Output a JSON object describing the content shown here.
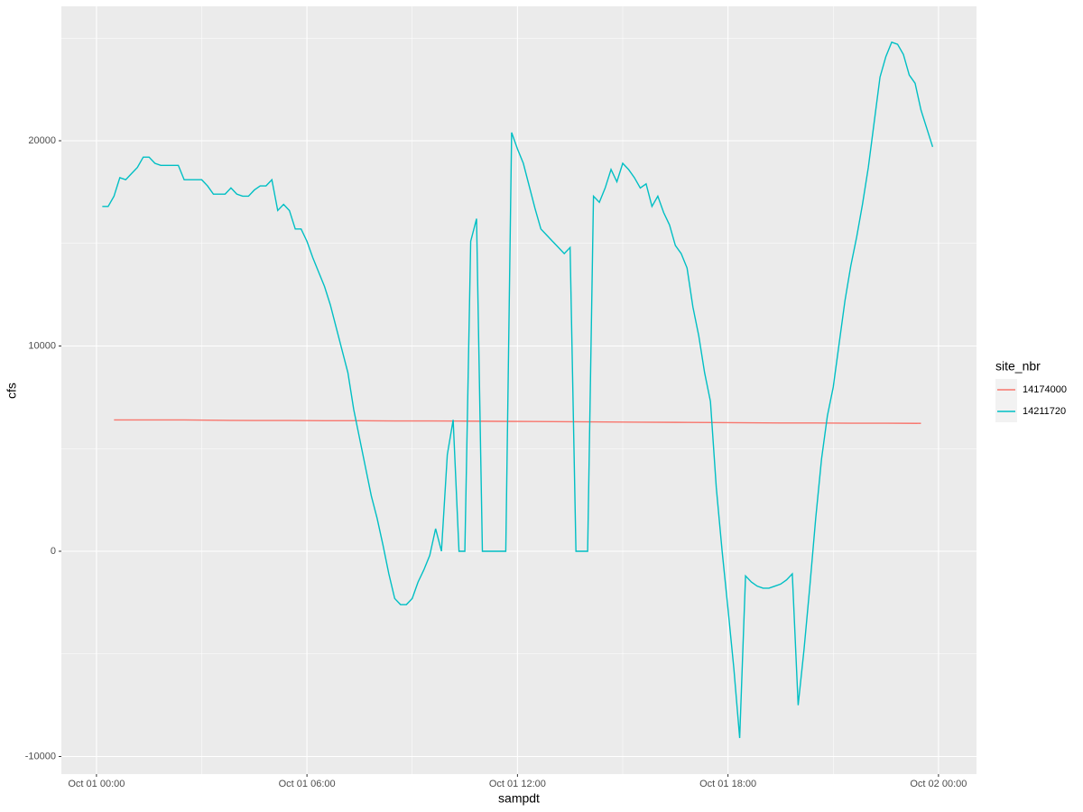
{
  "chart_data": {
    "type": "line",
    "x_label": "sampdt",
    "y_label": "cfs",
    "legend_title": "site_nbr",
    "legend": "right",
    "grid": true,
    "xlim": [
      "Sep 30 23:00",
      "Oct 02 01:05"
    ],
    "xticks": [
      "Oct 01 00:00",
      "Oct 01 06:00",
      "Oct 01 12:00",
      "Oct 01 18:00",
      "Oct 02 00:00"
    ],
    "ylim": [
      -10857,
      26549
    ],
    "yticks": [
      -10000,
      0,
      10000,
      20000
    ],
    "series": [
      {
        "name": "14174000",
        "color": "#F8766D",
        "x": [
          "Oct 01 00:30",
          "Oct 01 01:30",
          "Oct 01 02:30",
          "Oct 01 03:30",
          "Oct 01 04:30",
          "Oct 01 05:30",
          "Oct 01 06:30",
          "Oct 01 07:30",
          "Oct 01 08:30",
          "Oct 01 09:30",
          "Oct 01 10:30",
          "Oct 01 11:30",
          "Oct 01 12:30",
          "Oct 01 13:30",
          "Oct 01 14:30",
          "Oct 01 15:30",
          "Oct 01 16:30",
          "Oct 01 17:30",
          "Oct 01 18:30",
          "Oct 01 19:30",
          "Oct 01 20:30",
          "Oct 01 21:30",
          "Oct 01 22:30",
          "Oct 01 23:30"
        ],
        "values": [
          6400,
          6400,
          6400,
          6380,
          6370,
          6370,
          6360,
          6360,
          6350,
          6350,
          6340,
          6330,
          6320,
          6310,
          6300,
          6290,
          6280,
          6270,
          6260,
          6250,
          6250,
          6240,
          6240,
          6230
        ]
      },
      {
        "name": "14211720",
        "color": "#00BFC4",
        "x": [
          "Oct 01 00:10",
          "Oct 01 00:20",
          "Oct 01 00:30",
          "Oct 01 00:40",
          "Oct 01 00:50",
          "Oct 01 01:00",
          "Oct 01 01:10",
          "Oct 01 01:20",
          "Oct 01 01:30",
          "Oct 01 01:40",
          "Oct 01 01:50",
          "Oct 01 02:00",
          "Oct 01 02:10",
          "Oct 01 02:20",
          "Oct 01 02:30",
          "Oct 01 02:40",
          "Oct 01 02:50",
          "Oct 01 03:00",
          "Oct 01 03:10",
          "Oct 01 03:20",
          "Oct 01 03:30",
          "Oct 01 03:40",
          "Oct 01 03:50",
          "Oct 01 04:00",
          "Oct 01 04:10",
          "Oct 01 04:20",
          "Oct 01 04:30",
          "Oct 01 04:40",
          "Oct 01 04:50",
          "Oct 01 05:00",
          "Oct 01 05:10",
          "Oct 01 05:20",
          "Oct 01 05:30",
          "Oct 01 05:40",
          "Oct 01 05:50",
          "Oct 01 06:00",
          "Oct 01 06:10",
          "Oct 01 06:20",
          "Oct 01 06:30",
          "Oct 01 06:40",
          "Oct 01 06:50",
          "Oct 01 07:00",
          "Oct 01 07:10",
          "Oct 01 07:20",
          "Oct 01 07:30",
          "Oct 01 07:40",
          "Oct 01 07:50",
          "Oct 01 08:00",
          "Oct 01 08:10",
          "Oct 01 08:20",
          "Oct 01 08:30",
          "Oct 01 08:40",
          "Oct 01 08:50",
          "Oct 01 09:00",
          "Oct 01 09:10",
          "Oct 01 09:20",
          "Oct 01 09:30",
          "Oct 01 09:40",
          "Oct 01 09:50",
          "Oct 01 10:00",
          "Oct 01 10:10",
          "Oct 01 10:20",
          "Oct 01 10:30",
          "Oct 01 10:40",
          "Oct 01 10:50",
          "Oct 01 11:00",
          "Oct 01 11:10",
          "Oct 01 11:20",
          "Oct 01 11:30",
          "Oct 01 11:40",
          "Oct 01 11:50",
          "Oct 01 12:00",
          "Oct 01 12:10",
          "Oct 01 12:20",
          "Oct 01 12:30",
          "Oct 01 12:40",
          "Oct 01 12:50",
          "Oct 01 13:00",
          "Oct 01 13:10",
          "Oct 01 13:20",
          "Oct 01 13:30",
          "Oct 01 13:40",
          "Oct 01 13:50",
          "Oct 01 14:00",
          "Oct 01 14:10",
          "Oct 01 14:20",
          "Oct 01 14:30",
          "Oct 01 14:40",
          "Oct 01 14:50",
          "Oct 01 15:00",
          "Oct 01 15:10",
          "Oct 01 15:20",
          "Oct 01 15:30",
          "Oct 01 15:40",
          "Oct 01 15:50",
          "Oct 01 16:00",
          "Oct 01 16:10",
          "Oct 01 16:20",
          "Oct 01 16:30",
          "Oct 01 16:40",
          "Oct 01 16:50",
          "Oct 01 17:00",
          "Oct 01 17:10",
          "Oct 01 17:20",
          "Oct 01 17:30",
          "Oct 01 17:40",
          "Oct 01 17:50",
          "Oct 01 18:00",
          "Oct 01 18:10",
          "Oct 01 18:20",
          "Oct 01 18:30",
          "Oct 01 18:40",
          "Oct 01 18:50",
          "Oct 01 19:00",
          "Oct 01 19:10",
          "Oct 01 19:20",
          "Oct 01 19:30",
          "Oct 01 19:40",
          "Oct 01 19:50",
          "Oct 01 20:00",
          "Oct 01 20:10",
          "Oct 01 20:20",
          "Oct 01 20:30",
          "Oct 01 20:40",
          "Oct 01 20:50",
          "Oct 01 21:00",
          "Oct 01 21:10",
          "Oct 01 21:20",
          "Oct 01 21:30",
          "Oct 01 21:40",
          "Oct 01 21:50",
          "Oct 01 22:00",
          "Oct 01 22:10",
          "Oct 01 22:20",
          "Oct 01 22:30",
          "Oct 01 22:40",
          "Oct 01 22:50",
          "Oct 01 23:00",
          "Oct 01 23:10",
          "Oct 01 23:20",
          "Oct 01 23:30",
          "Oct 01 23:40",
          "Oct 01 23:50"
        ],
        "values": [
          16800,
          16800,
          17300,
          18200,
          18100,
          18400,
          18700,
          19200,
          19200,
          18900,
          18800,
          18800,
          18800,
          18800,
          18100,
          18100,
          18100,
          18100,
          17800,
          17400,
          17400,
          17400,
          17700,
          17400,
          17300,
          17300,
          17600,
          17800,
          17800,
          18100,
          16600,
          16900,
          16600,
          15700,
          15700,
          15100,
          14300,
          13600,
          12900,
          12000,
          10900,
          9800,
          8700,
          6900,
          5500,
          4100,
          2700,
          1600,
          300,
          -1100,
          -2300,
          -2600,
          -2600,
          -2300,
          -1500,
          -900,
          -200,
          1100,
          0,
          4700,
          6400,
          0,
          0,
          15100,
          16200,
          0,
          0,
          0,
          0,
          0,
          20400,
          19600,
          18900,
          17800,
          16700,
          15700,
          15400,
          15100,
          14800,
          14500,
          14800,
          0,
          0,
          0,
          17300,
          17000,
          17700,
          18600,
          18000,
          18900,
          18600,
          18200,
          17700,
          17900,
          16800,
          17300,
          16500,
          15900,
          14900,
          14500,
          13800,
          11900,
          10500,
          8700,
          7300,
          3100,
          0,
          -2800,
          -5700,
          -9100,
          -1200,
          -1500,
          -1700,
          -1800,
          -1800,
          -1700,
          -1600,
          -1400,
          -1100,
          -7500,
          -4800,
          -1700,
          1600,
          4500,
          6600,
          8000,
          10100,
          12200,
          13900,
          15300,
          16900,
          18700,
          20900,
          23100,
          24100,
          24800,
          24700,
          24200,
          23200,
          22800,
          21500,
          20600,
          19700
        ]
      }
    ]
  }
}
